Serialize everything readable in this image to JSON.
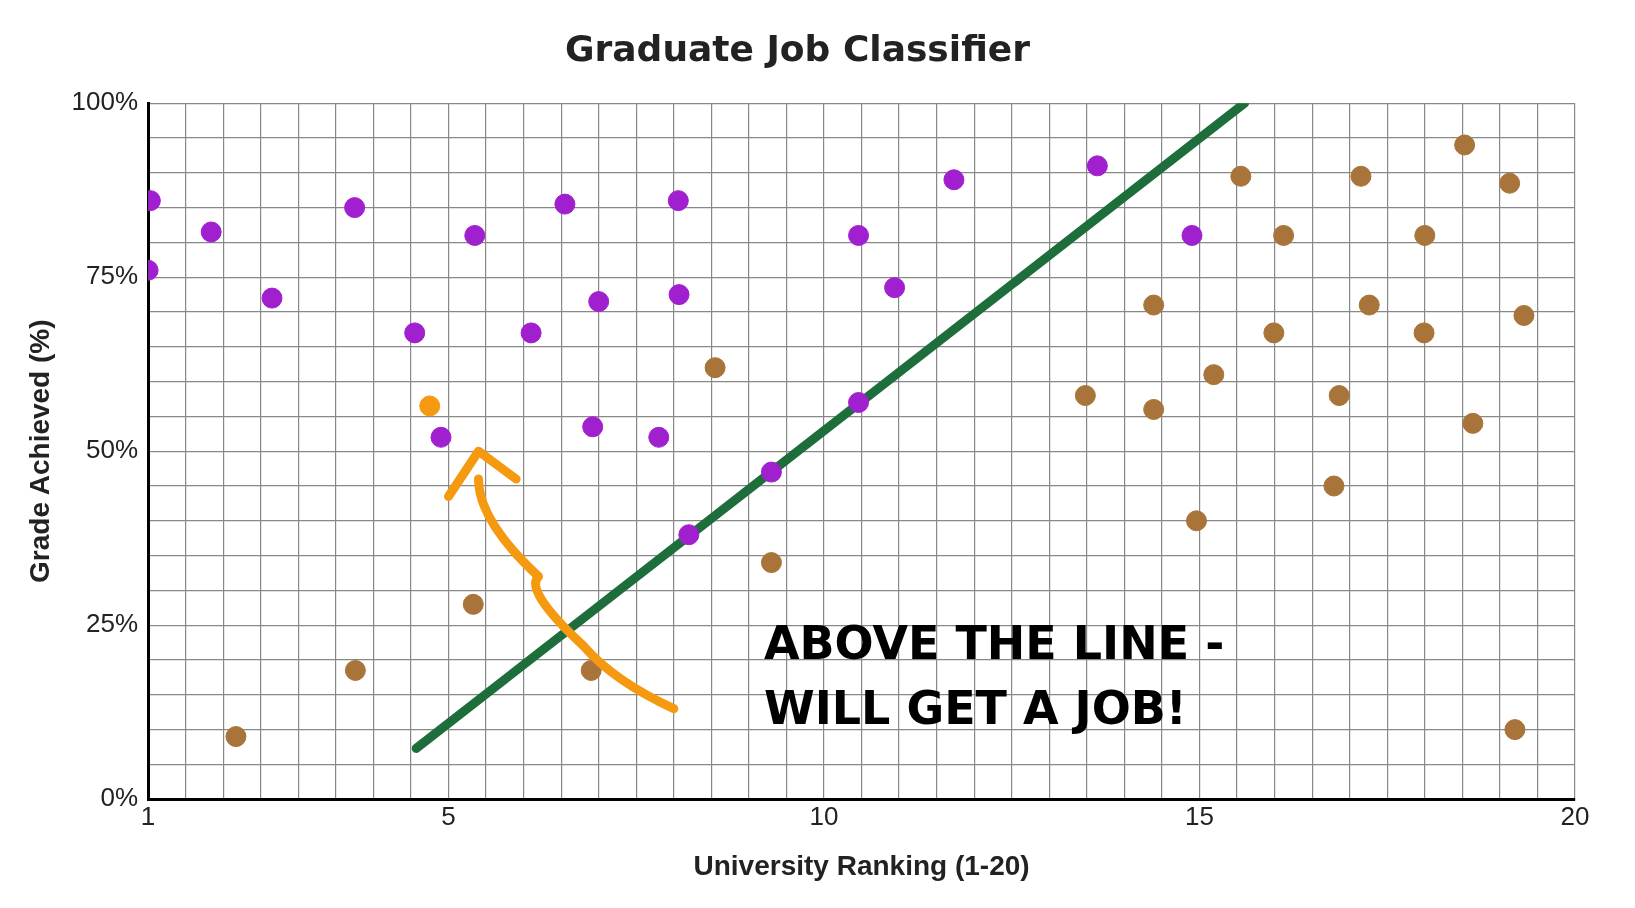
{
  "chart_data": {
    "type": "scatter",
    "title": "Graduate Job Classifier",
    "xlabel": "University Ranking (1-20)",
    "ylabel": "Grade Achieved (%)",
    "xlim": [
      1,
      20
    ],
    "ylim": [
      0,
      100
    ],
    "xticks": [
      1,
      {
        "value": 1.5,
        "label": null
      },
      {
        "value": 2,
        "label": null
      },
      {
        "value": 2.5,
        "label": null
      },
      {
        "value": 3,
        "label": null
      },
      {
        "value": 3.5,
        "label": null
      },
      {
        "value": 4,
        "label": null
      },
      {
        "value": 4.5,
        "label": null
      },
      5,
      {
        "value": 5.5,
        "label": null
      },
      {
        "value": 6,
        "label": null
      },
      {
        "value": 6.5,
        "label": null
      },
      {
        "value": 7,
        "label": null
      },
      {
        "value": 7.5,
        "label": null
      },
      {
        "value": 8,
        "label": null
      },
      {
        "value": 8.5,
        "label": null
      },
      {
        "value": 9,
        "label": null
      },
      {
        "value": 9.5,
        "label": null
      },
      10,
      {
        "value": 10.5,
        "label": null
      },
      {
        "value": 11,
        "label": null
      },
      {
        "value": 11.5,
        "label": null
      },
      {
        "value": 12,
        "label": null
      },
      {
        "value": 12.5,
        "label": null
      },
      {
        "value": 13,
        "label": null
      },
      {
        "value": 13.5,
        "label": null
      },
      {
        "value": 14,
        "label": null
      },
      {
        "value": 14.5,
        "label": null
      },
      15,
      {
        "value": 15.5,
        "label": null
      },
      {
        "value": 16,
        "label": null
      },
      {
        "value": 16.5,
        "label": null
      },
      {
        "value": 17,
        "label": null
      },
      {
        "value": 17.5,
        "label": null
      },
      {
        "value": 18,
        "label": null
      },
      {
        "value": 18.5,
        "label": null
      },
      {
        "value": 19,
        "label": null
      },
      {
        "value": 19.5,
        "label": null
      },
      20
    ],
    "yticks": [
      {
        "value": 0,
        "label": "0%"
      },
      {
        "value": 5,
        "label": null
      },
      {
        "value": 10,
        "label": null
      },
      {
        "value": 15,
        "label": null
      },
      {
        "value": 20,
        "label": null
      },
      {
        "value": 25,
        "label": "25%"
      },
      {
        "value": 30,
        "label": null
      },
      {
        "value": 35,
        "label": null
      },
      {
        "value": 40,
        "label": null
      },
      {
        "value": 45,
        "label": null
      },
      {
        "value": 50,
        "label": "50%"
      },
      {
        "value": 55,
        "label": null
      },
      {
        "value": 60,
        "label": null
      },
      {
        "value": 65,
        "label": null
      },
      {
        "value": 70,
        "label": null
      },
      {
        "value": 75,
        "label": "75%"
      },
      {
        "value": 80,
        "label": null
      },
      {
        "value": 85,
        "label": null
      },
      {
        "value": 90,
        "label": null
      },
      {
        "value": 95,
        "label": null
      },
      {
        "value": 100,
        "label": "100%"
      }
    ],
    "grid": true,
    "legend": false,
    "marker": "circle",
    "series": [
      {
        "color": "#a020d0",
        "x": [
          1.03,
          1,
          1.84,
          2.65,
          3.75,
          4.55,
          4.9,
          5.35,
          6.1,
          6.55,
          6.92,
          7,
          7.8,
          8.06,
          8.07,
          8.2,
          9.3,
          10.46,
          10.46,
          10.94,
          11.73,
          13.64,
          14.9
        ],
        "values": [
          86,
          76,
          81.5,
          72,
          85,
          67,
          52,
          81,
          67,
          85.5,
          53.5,
          71.5,
          52,
          86,
          72.5,
          38,
          47,
          81,
          57,
          73.5,
          89,
          91,
          81
        ]
      },
      {
        "color": "#a8743a",
        "x": [
          2.17,
          3.76,
          5.33,
          6.9,
          8.55,
          9.3,
          13.48,
          14.39,
          14.39,
          15.19,
          14.96,
          15.55,
          16.12,
          15.99,
          16.86,
          16.79,
          17.15,
          17.26,
          18,
          17.99,
          18.53,
          18.64,
          19.13,
          19.32,
          19.2
        ],
        "values": [
          9,
          18.5,
          28,
          18.5,
          62,
          34,
          58,
          71,
          56,
          61,
          40,
          89.5,
          81,
          67,
          58,
          45,
          89.5,
          71,
          81,
          67,
          94,
          54,
          88.5,
          69.5,
          10
        ]
      },
      {
        "color": "#f59a10",
        "x": [
          4.75
        ],
        "values": [
          56.5
        ]
      },
      {
        "type": "line",
        "color": "#1e6e3c",
        "marker": "none",
        "x": [
          4.57,
          15.6
        ],
        "values": [
          7.3,
          100
        ]
      }
    ],
    "annotations": [
      "ABOVE THE LINE - WILL GET A JOB!"
    ]
  }
}
